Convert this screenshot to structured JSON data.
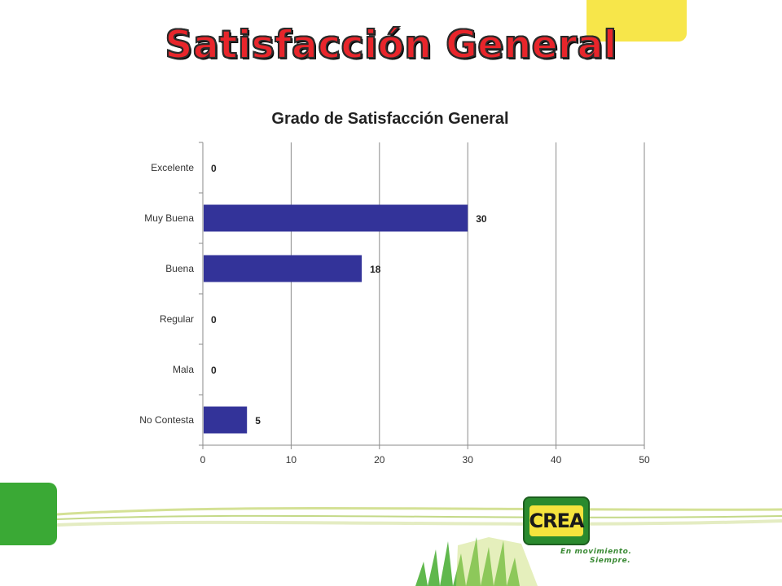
{
  "slide": {
    "title": "Satisfacción General",
    "logo_text": "CREA",
    "slogan_line1": "En movimiento.",
    "slogan_line2": "Siempre."
  },
  "colors": {
    "bar": "#333399",
    "title_fill": "#e8252b",
    "accent_yellow": "#f7e64a",
    "accent_green": "#3aa935"
  },
  "chart_data": {
    "type": "bar",
    "orientation": "horizontal",
    "title": "Grado de Satisfacción General",
    "categories": [
      "Excelente",
      "Muy Buena",
      "Buena",
      "Regular",
      "Mala",
      "No Contesta"
    ],
    "values": [
      0,
      30,
      18,
      0,
      0,
      5
    ],
    "xlim": [
      0,
      50
    ],
    "xticks": [
      0,
      10,
      20,
      30,
      40,
      50
    ],
    "grid": "vertical",
    "legend": "none",
    "data_labels": true
  }
}
